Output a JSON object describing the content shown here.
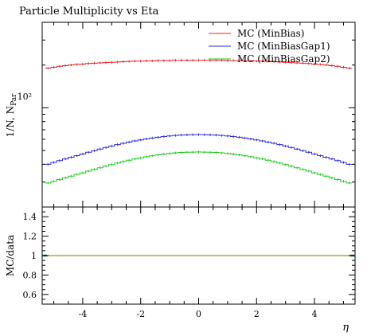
{
  "chart_data": [
    {
      "type": "line",
      "title": "Particle Multiplicity vs Eta",
      "ylabel": "1/N, N_Par",
      "ylabel_main": "1/N, N",
      "ylabel_sub": "Par",
      "xlabel": "",
      "yscale": "log",
      "ylim": [
        20,
        400
      ],
      "xlim": [
        -5.4,
        5.4
      ],
      "y_tick_label": "10²",
      "grid": false,
      "legend_position": "top-right",
      "x": [
        -5.2,
        -5.0,
        -4.8,
        -4.6,
        -4.4,
        -4.2,
        -4.0,
        -3.8,
        -3.6,
        -3.4,
        -3.2,
        -3.0,
        -2.8,
        -2.6,
        -2.4,
        -2.2,
        -2.0,
        -1.8,
        -1.6,
        -1.4,
        -1.2,
        -1.0,
        -0.8,
        -0.6,
        -0.4,
        -0.2,
        0.0,
        0.2,
        0.4,
        0.6,
        0.8,
        1.0,
        1.2,
        1.4,
        1.6,
        1.8,
        2.0,
        2.2,
        2.4,
        2.6,
        2.8,
        3.0,
        3.2,
        3.4,
        3.6,
        3.8,
        4.0,
        4.2,
        4.4,
        4.6,
        4.8,
        5.0,
        5.2
      ],
      "series": [
        {
          "name": "MC (MinBias)",
          "color": "#e8242b",
          "values": [
            190,
            193,
            196,
            198,
            200,
            202,
            203,
            205,
            206,
            207,
            208,
            209,
            210,
            211,
            212,
            213,
            213,
            214,
            214,
            215,
            215,
            215,
            216,
            216,
            216,
            216,
            216,
            216,
            216,
            216,
            216,
            215,
            215,
            215,
            214,
            214,
            213,
            213,
            212,
            211,
            210,
            209,
            208,
            207,
            206,
            205,
            203,
            202,
            200,
            198,
            196,
            193,
            190
          ]
        },
        {
          "name": "MC (MinBiasGap1)",
          "color": "#2a2fe0",
          "values": [
            40,
            41.2,
            42.4,
            43.6,
            44.8,
            46,
            47.3,
            48.6,
            49.9,
            51.2,
            52.5,
            53.8,
            55,
            56.2,
            57.3,
            58.4,
            59.4,
            60.3,
            61.2,
            62,
            62.7,
            63.3,
            63.8,
            64.2,
            64.5,
            64.7,
            64.8,
            64.7,
            64.5,
            64.2,
            63.8,
            63.3,
            62.7,
            62,
            61.2,
            60.3,
            59.4,
            58.4,
            57.3,
            56.2,
            55,
            53.8,
            52.5,
            51.2,
            49.9,
            48.6,
            47.3,
            46,
            44.8,
            43.6,
            42.4,
            41.2,
            40
          ]
        },
        {
          "name": "MC (MinBiasGap2)",
          "color": "#22cc22",
          "values": [
            29.5,
            30.3,
            31.2,
            32.1,
            33,
            33.9,
            34.8,
            35.8,
            36.8,
            37.8,
            38.8,
            39.8,
            40.8,
            41.8,
            42.7,
            43.6,
            44.4,
            45.2,
            45.9,
            46.6,
            47.2,
            47.7,
            48.1,
            48.4,
            48.6,
            48.7,
            48.8,
            48.7,
            48.6,
            48.4,
            48.1,
            47.7,
            47.2,
            46.6,
            45.9,
            45.2,
            44.4,
            43.6,
            42.7,
            41.8,
            40.8,
            39.8,
            38.8,
            37.8,
            36.8,
            35.8,
            34.8,
            33.9,
            33,
            32.1,
            31.2,
            30.3,
            29.5
          ]
        }
      ]
    },
    {
      "type": "line",
      "title": "",
      "ylabel": "MC/data",
      "xlabel": "η",
      "ylim": [
        0.5,
        1.5
      ],
      "xlim": [
        -5.4,
        5.4
      ],
      "x_ticks": [
        -4,
        -2,
        0,
        2,
        4
      ],
      "x_tick_labels": [
        "-4",
        "-2",
        "0",
        "2",
        "4"
      ],
      "y_ticks": [
        0.6,
        0.8,
        1,
        1.2,
        1.4
      ],
      "y_tick_labels": [
        "0.6",
        "0.8",
        "1",
        "1.2",
        "1.4"
      ],
      "grid": false,
      "series": [
        {
          "color": "#e8242b",
          "values": [
            1,
            1,
            1,
            1,
            1,
            1,
            1,
            1,
            1,
            1,
            1,
            1,
            1,
            1,
            1,
            1,
            1,
            1,
            1,
            1,
            1,
            1,
            1,
            1,
            1,
            1,
            1,
            1,
            1,
            1,
            1,
            1,
            1,
            1,
            1,
            1,
            1,
            1,
            1,
            1,
            1,
            1,
            1,
            1,
            1,
            1,
            1,
            1,
            1,
            1,
            1,
            1,
            1
          ]
        },
        {
          "color": "#2a2fe0",
          "values": [
            1,
            1,
            1,
            1,
            1,
            1,
            1,
            1,
            1,
            1,
            1,
            1,
            1,
            1,
            1,
            1,
            1,
            1,
            1,
            1,
            1,
            1,
            1,
            1,
            1,
            1,
            1,
            1,
            1,
            1,
            1,
            1,
            1,
            1,
            1,
            1,
            1,
            1,
            1,
            1,
            1,
            1,
            1,
            1,
            1,
            1,
            1,
            1,
            1,
            1,
            1,
            1,
            1
          ]
        },
        {
          "color": "#22cc22",
          "values": [
            1,
            1,
            1,
            1,
            1,
            1,
            1,
            1,
            1,
            1,
            1,
            1,
            1,
            1,
            1,
            1,
            1,
            1,
            1,
            1,
            1,
            1,
            1,
            1,
            1,
            1,
            1,
            1,
            1,
            1,
            1,
            1,
            1,
            1,
            1,
            1,
            1,
            1,
            1,
            1,
            1,
            1,
            1,
            1,
            1,
            1,
            1,
            1,
            1,
            1,
            1,
            1,
            1
          ]
        }
      ]
    }
  ]
}
